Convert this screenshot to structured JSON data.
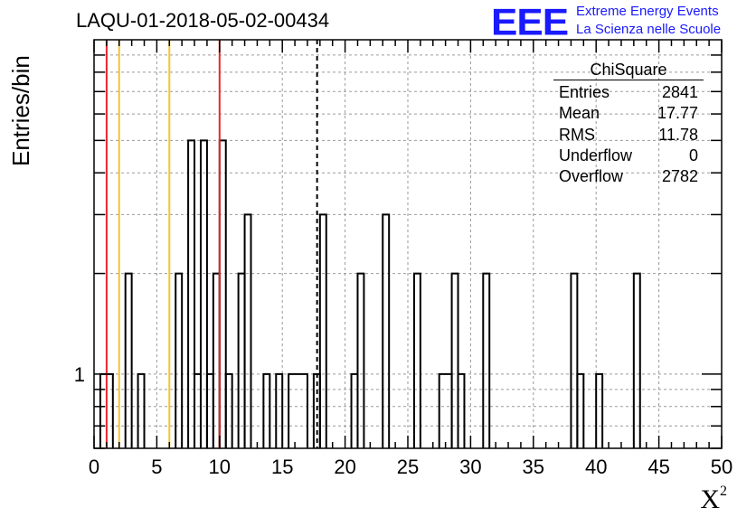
{
  "header": {
    "title": "LAQU-01-2018-05-02-00434",
    "logo_text": "EEE",
    "logo_line1": "Extreme Energy Events",
    "logo_line2": "La Scienza nelle Scuole"
  },
  "stats_box": {
    "title": "ChiSquare",
    "rows": [
      {
        "label": "Entries",
        "value": "2841"
      },
      {
        "label": "Mean",
        "value": "17.77"
      },
      {
        "label": "RMS",
        "value": "11.78"
      },
      {
        "label": "Underflow",
        "value": "0"
      },
      {
        "label": "Overflow",
        "value": "2782"
      }
    ]
  },
  "colors": {
    "red_line": "#e8262b",
    "yellow_line": "#f4c430",
    "histogram": "#000000",
    "grid": "#9a9a9a",
    "logo": "#1a1aff"
  },
  "chart_data": {
    "type": "histogram",
    "title": "LAQU-01-2018-05-02-00434",
    "xlabel": "X",
    "xlabel_superscript": "2",
    "ylabel": "Entries/bin",
    "xlim": [
      0,
      50
    ],
    "ylim": [
      0.6,
      10
    ],
    "yscale": "log",
    "bin_width": 0.5,
    "x_ticks": [
      0,
      5,
      10,
      15,
      20,
      25,
      30,
      35,
      40,
      45,
      50
    ],
    "y_tick_labels": [
      {
        "value": 1,
        "label": "1"
      }
    ],
    "grid": true,
    "bins": [
      {
        "x": [
          0.5,
          1.5
        ],
        "y": 1
      },
      {
        "x": [
          2.5,
          3.0
        ],
        "y": 2
      },
      {
        "x": [
          3.5,
          4.0
        ],
        "y": 1
      },
      {
        "x": [
          6.5,
          7.0
        ],
        "y": 2
      },
      {
        "x": [
          7.5,
          8.0
        ],
        "y": 5
      },
      {
        "x": [
          8.0,
          8.5
        ],
        "y": 1
      },
      {
        "x": [
          8.5,
          9.0
        ],
        "y": 5
      },
      {
        "x": [
          9.0,
          9.5
        ],
        "y": 1
      },
      {
        "x": [
          9.5,
          10.0
        ],
        "y": 2
      },
      {
        "x": [
          10.0,
          10.5
        ],
        "y": 5
      },
      {
        "x": [
          10.5,
          11.0
        ],
        "y": 1
      },
      {
        "x": [
          11.5,
          12.0
        ],
        "y": 2
      },
      {
        "x": [
          12.0,
          12.5
        ],
        "y": 3
      },
      {
        "x": [
          13.5,
          14.0
        ],
        "y": 1
      },
      {
        "x": [
          14.5,
          15.0
        ],
        "y": 1
      },
      {
        "x": [
          15.5,
          17.0
        ],
        "y": 1
      },
      {
        "x": [
          17.5,
          18.0
        ],
        "y": 1
      },
      {
        "x": [
          18.0,
          18.5
        ],
        "y": 3
      },
      {
        "x": [
          20.5,
          21.0
        ],
        "y": 1
      },
      {
        "x": [
          21.0,
          21.5
        ],
        "y": 2
      },
      {
        "x": [
          23.0,
          23.5
        ],
        "y": 3
      },
      {
        "x": [
          25.5,
          26.0
        ],
        "y": 2
      },
      {
        "x": [
          27.5,
          28.5
        ],
        "y": 1
      },
      {
        "x": [
          28.5,
          29.0
        ],
        "y": 2
      },
      {
        "x": [
          29.0,
          29.5
        ],
        "y": 1
      },
      {
        "x": [
          31.0,
          31.5
        ],
        "y": 2
      },
      {
        "x": [
          38.0,
          38.5
        ],
        "y": 2
      },
      {
        "x": [
          38.5,
          39.0
        ],
        "y": 1
      },
      {
        "x": [
          40.0,
          40.5
        ],
        "y": 1
      },
      {
        "x": [
          43.0,
          43.5
        ],
        "y": 2
      }
    ],
    "vertical_lines": [
      {
        "x": 1,
        "color": "red",
        "style": "solid"
      },
      {
        "x": 2,
        "color": "yellow",
        "style": "solid"
      },
      {
        "x": 6,
        "color": "yellow",
        "style": "solid"
      },
      {
        "x": 10,
        "color": "red",
        "style": "solid"
      },
      {
        "x": 17.77,
        "color": "black",
        "style": "dashed"
      }
    ]
  }
}
